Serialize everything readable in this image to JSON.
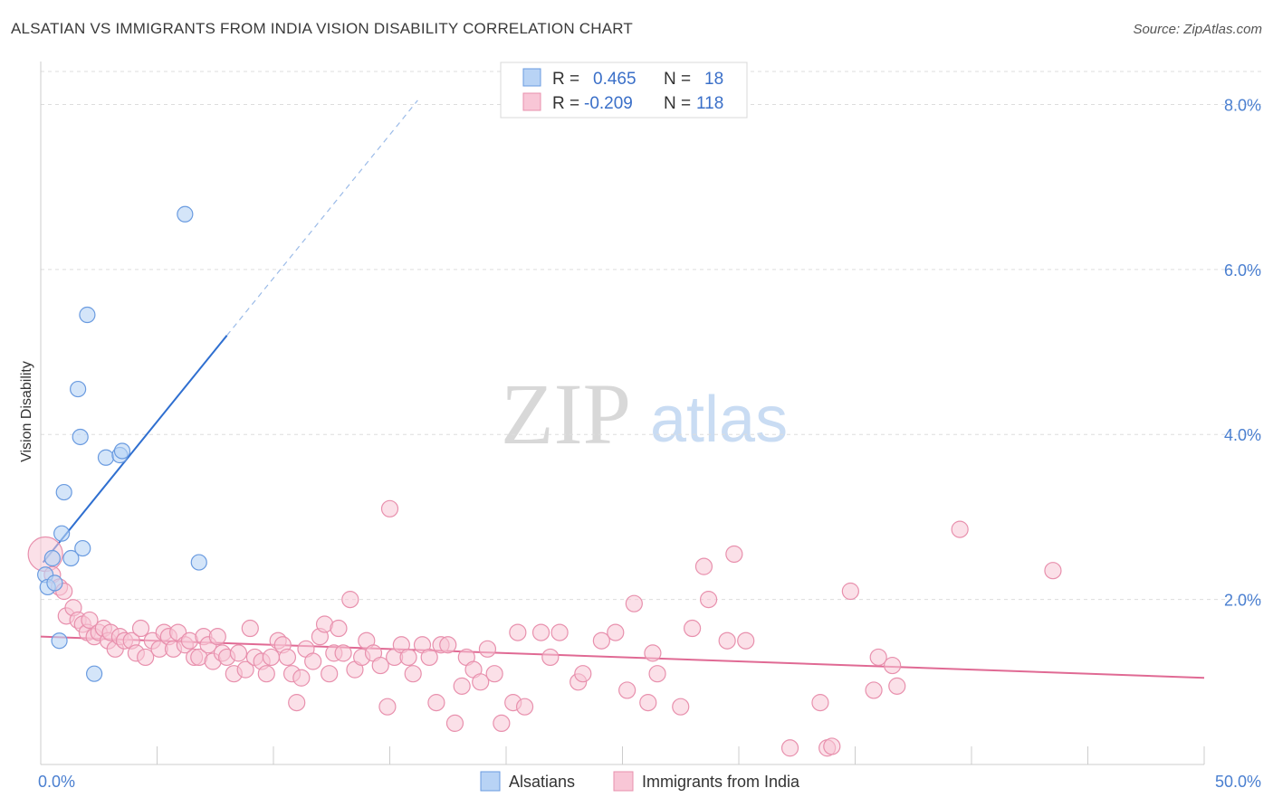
{
  "header": {
    "title": "ALSATIAN VS IMMIGRANTS FROM INDIA VISION DISABILITY CORRELATION CHART",
    "source": "Source: ZipAtlas.com"
  },
  "watermark": {
    "zip": "ZIP",
    "atlas": "atlas"
  },
  "colors": {
    "blue_fill": "#b8d3f5",
    "blue_stroke": "#6a9be0",
    "blue_line": "#2f6fd0",
    "pink_fill": "#f8c6d6",
    "pink_stroke": "#e890ad",
    "pink_line": "#e06a94",
    "grid": "#dddddd",
    "axis_text": "#4a7fd0"
  },
  "legend": {
    "rows": [
      {
        "r_label": "R =",
        "r_value": "0.465",
        "n_label": "N =",
        "n_value": "18",
        "color": "blue"
      },
      {
        "r_label": "R =",
        "r_value": "-0.209",
        "n_label": "N =",
        "n_value": "118",
        "color": "pink"
      }
    ]
  },
  "bottom_legend": {
    "items": [
      {
        "label": "Alsatians",
        "color": "blue"
      },
      {
        "label": "Immigrants from India",
        "color": "pink"
      }
    ]
  },
  "chart_data": {
    "type": "scatter",
    "title": "ALSATIAN VS IMMIGRANTS FROM INDIA VISION DISABILITY CORRELATION CHART",
    "ylabel": "Vision Disability",
    "xlabel": "",
    "xlim": [
      0,
      50
    ],
    "ylim": [
      0,
      8.4
    ],
    "x_tick_labels": [
      {
        "value": 0,
        "label": "0.0%"
      },
      {
        "value": 50,
        "label": "50.0%"
      }
    ],
    "y_tick_labels": [
      {
        "value": 2,
        "label": "2.0%"
      },
      {
        "value": 4,
        "label": "4.0%"
      },
      {
        "value": 6,
        "label": "6.0%"
      },
      {
        "value": 8,
        "label": "8.0%"
      }
    ],
    "x_minor_ticks": [
      0,
      5,
      10,
      15,
      20,
      25,
      30,
      35,
      40,
      45,
      50
    ],
    "grid": true,
    "legend_position": "top-center",
    "series": [
      {
        "name": "Alsatians",
        "color": "blue",
        "trend": {
          "x": [
            0.1,
            8.0
          ],
          "y": [
            2.45,
            5.2
          ],
          "dashed_extension": {
            "x": [
              8.0,
              16.2
            ],
            "y": [
              5.2,
              8.05
            ]
          }
        },
        "points": [
          [
            0.2,
            2.3
          ],
          [
            0.3,
            2.15
          ],
          [
            0.5,
            2.5
          ],
          [
            0.6,
            2.2
          ],
          [
            0.8,
            1.5
          ],
          [
            0.9,
            2.8
          ],
          [
            1.0,
            3.3
          ],
          [
            1.3,
            2.5
          ],
          [
            1.6,
            4.55
          ],
          [
            1.7,
            3.97
          ],
          [
            1.8,
            2.62
          ],
          [
            2.0,
            5.45
          ],
          [
            2.3,
            1.1
          ],
          [
            2.8,
            3.72
          ],
          [
            3.4,
            3.75
          ],
          [
            3.5,
            3.8
          ],
          [
            6.2,
            6.67
          ],
          [
            6.8,
            2.45
          ]
        ]
      },
      {
        "name": "Immigrants from India",
        "color": "pink",
        "trend": {
          "x": [
            0,
            50
          ],
          "y": [
            1.55,
            1.05
          ]
        },
        "points": [
          [
            0.2,
            2.55
          ],
          [
            0.5,
            2.3
          ],
          [
            0.8,
            2.15
          ],
          [
            1.0,
            2.1
          ],
          [
            1.1,
            1.8
          ],
          [
            1.4,
            1.9
          ],
          [
            1.6,
            1.75
          ],
          [
            1.8,
            1.7
          ],
          [
            2.0,
            1.6
          ],
          [
            2.1,
            1.75
          ],
          [
            2.3,
            1.55
          ],
          [
            2.5,
            1.6
          ],
          [
            2.7,
            1.65
          ],
          [
            2.9,
            1.5
          ],
          [
            3.0,
            1.6
          ],
          [
            3.2,
            1.4
          ],
          [
            3.4,
            1.55
          ],
          [
            3.6,
            1.5
          ],
          [
            3.9,
            1.5
          ],
          [
            4.1,
            1.35
          ],
          [
            4.3,
            1.65
          ],
          [
            4.5,
            1.3
          ],
          [
            4.8,
            1.5
          ],
          [
            5.1,
            1.4
          ],
          [
            5.3,
            1.6
          ],
          [
            5.5,
            1.55
          ],
          [
            5.7,
            1.4
          ],
          [
            5.9,
            1.6
          ],
          [
            6.2,
            1.45
          ],
          [
            6.4,
            1.5
          ],
          [
            6.6,
            1.3
          ],
          [
            6.8,
            1.3
          ],
          [
            7.0,
            1.55
          ],
          [
            7.2,
            1.45
          ],
          [
            7.4,
            1.25
          ],
          [
            7.6,
            1.55
          ],
          [
            7.8,
            1.35
          ],
          [
            8.0,
            1.3
          ],
          [
            8.3,
            1.1
          ],
          [
            8.5,
            1.35
          ],
          [
            8.8,
            1.15
          ],
          [
            9.0,
            1.65
          ],
          [
            9.2,
            1.3
          ],
          [
            9.5,
            1.25
          ],
          [
            9.7,
            1.1
          ],
          [
            9.9,
            1.3
          ],
          [
            10.2,
            1.5
          ],
          [
            10.4,
            1.45
          ],
          [
            10.6,
            1.3
          ],
          [
            10.8,
            1.1
          ],
          [
            11.0,
            0.75
          ],
          [
            11.2,
            1.05
          ],
          [
            11.4,
            1.4
          ],
          [
            11.7,
            1.25
          ],
          [
            12.0,
            1.55
          ],
          [
            12.2,
            1.7
          ],
          [
            12.4,
            1.1
          ],
          [
            12.6,
            1.35
          ],
          [
            12.8,
            1.65
          ],
          [
            13.0,
            1.35
          ],
          [
            13.3,
            2.0
          ],
          [
            13.5,
            1.15
          ],
          [
            13.8,
            1.3
          ],
          [
            14.0,
            1.5
          ],
          [
            14.3,
            1.35
          ],
          [
            14.6,
            1.2
          ],
          [
            14.9,
            0.7
          ],
          [
            15.0,
            3.1
          ],
          [
            15.2,
            1.3
          ],
          [
            15.5,
            1.45
          ],
          [
            15.8,
            1.3
          ],
          [
            16.0,
            1.1
          ],
          [
            16.4,
            1.45
          ],
          [
            16.7,
            1.3
          ],
          [
            17.0,
            0.75
          ],
          [
            17.2,
            1.45
          ],
          [
            17.5,
            1.45
          ],
          [
            17.8,
            0.5
          ],
          [
            18.1,
            0.95
          ],
          [
            18.3,
            1.3
          ],
          [
            18.6,
            1.15
          ],
          [
            18.9,
            1.0
          ],
          [
            19.2,
            1.4
          ],
          [
            19.5,
            1.1
          ],
          [
            19.8,
            0.5
          ],
          [
            20.3,
            0.75
          ],
          [
            20.5,
            1.6
          ],
          [
            20.8,
            0.7
          ],
          [
            21.5,
            1.6
          ],
          [
            21.9,
            1.3
          ],
          [
            22.3,
            1.6
          ],
          [
            23.1,
            1.0
          ],
          [
            23.3,
            1.1
          ],
          [
            24.1,
            1.5
          ],
          [
            24.7,
            1.6
          ],
          [
            25.2,
            0.9
          ],
          [
            25.5,
            1.95
          ],
          [
            26.1,
            0.75
          ],
          [
            26.3,
            1.35
          ],
          [
            26.5,
            1.1
          ],
          [
            27.5,
            0.7
          ],
          [
            28.0,
            1.65
          ],
          [
            28.5,
            2.4
          ],
          [
            28.7,
            2.0
          ],
          [
            29.5,
            1.5
          ],
          [
            29.8,
            2.55
          ],
          [
            30.3,
            1.5
          ],
          [
            32.2,
            0.2
          ],
          [
            33.5,
            0.75
          ],
          [
            33.8,
            0.2
          ],
          [
            34.0,
            0.22
          ],
          [
            34.8,
            2.1
          ],
          [
            35.8,
            0.9
          ],
          [
            36.0,
            1.3
          ],
          [
            36.6,
            1.2
          ],
          [
            36.8,
            0.95
          ],
          [
            39.5,
            2.85
          ],
          [
            43.5,
            2.35
          ]
        ]
      }
    ]
  }
}
